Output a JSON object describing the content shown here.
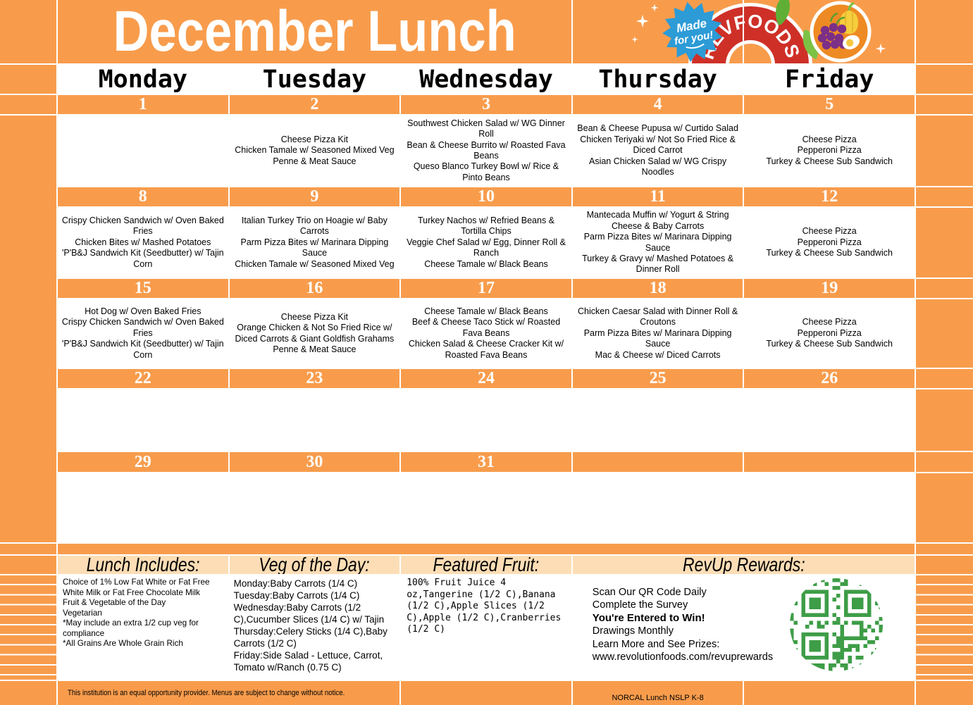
{
  "title": "December Lunch",
  "logo": {
    "badge_line1": "Made",
    "badge_line2": "for you!",
    "brand": "REVFOODS",
    "registered": "®"
  },
  "days": [
    "Monday",
    "Tuesday",
    "Wednesday",
    "Thursday",
    "Friday"
  ],
  "weeks": [
    {
      "dates": [
        "1",
        "2",
        "3",
        "4",
        "5"
      ],
      "menus": [
        "",
        "Cheese Pizza Kit\nChicken Tamale w/ Seasoned Mixed Veg\nPenne & Meat Sauce",
        "Southwest Chicken Salad w/ WG Dinner Roll\nBean & Cheese Burrito w/ Roasted Fava Beans\nQueso Blanco Turkey Bowl w/ Rice & Pinto Beans",
        "Bean & Cheese Pupusa w/ Curtido Salad\nChicken Teriyaki w/ Not So Fried Rice & Diced Carrot\nAsian Chicken Salad w/ WG Crispy Noodles",
        "Cheese Pizza\nPepperoni Pizza\nTurkey & Cheese Sub Sandwich"
      ]
    },
    {
      "dates": [
        "8",
        "9",
        "10",
        "11",
        "12"
      ],
      "menus": [
        "Crispy Chicken Sandwich w/ Oven Baked Fries\nChicken Bites w/ Mashed Potatoes\n'P'B&J Sandwich Kit (Seedbutter) w/ Tajin Corn",
        "Italian Turkey Trio on Hoagie w/ Baby Carrots\nParm Pizza Bites w/ Marinara Dipping Sauce\nChicken Tamale w/ Seasoned Mixed Veg",
        "Turkey Nachos w/ Refried Beans & Tortilla Chips\nVeggie Chef Salad w/ Egg, Dinner Roll & Ranch\nCheese Tamale w/ Black Beans",
        "Mantecada Muffin w/ Yogurt & String Cheese & Baby Carrots\nParm Pizza Bites w/ Marinara Dipping Sauce\nTurkey & Gravy w/ Mashed Potatoes & Dinner Roll",
        "Cheese Pizza\nPepperoni Pizza\nTurkey & Cheese Sub Sandwich"
      ]
    },
    {
      "dates": [
        "15",
        "16",
        "17",
        "18",
        "19"
      ],
      "menus": [
        "Hot Dog w/ Oven Baked Fries\nCrispy Chicken Sandwich w/ Oven Baked Fries\n'P'B&J Sandwich Kit (Seedbutter) w/ Tajin Corn",
        "Cheese Pizza Kit\nOrange Chicken & Not So Fried Rice w/ Diced Carrots & Giant Goldfish Grahams\nPenne & Meat Sauce",
        "Cheese Tamale w/ Black Beans\nBeef & Cheese Taco Stick w/ Roasted Fava Beans\nChicken Salad & Cheese Cracker Kit w/ Roasted Fava Beans",
        "Chicken Caesar Salad with Dinner Roll & Croutons\nParm Pizza Bites w/ Marinara Dipping Sauce\nMac & Cheese w/ Diced Carrots",
        "Cheese Pizza\nPepperoni Pizza\nTurkey & Cheese Sub Sandwich"
      ]
    },
    {
      "dates": [
        "22",
        "23",
        "24",
        "25",
        "26"
      ],
      "menus": [
        "",
        "",
        "",
        "",
        ""
      ]
    },
    {
      "dates": [
        "29",
        "30",
        "31",
        "",
        ""
      ],
      "menus": [
        "",
        "",
        "",
        "",
        ""
      ]
    }
  ],
  "sections": {
    "lunch_includes": {
      "header": "Lunch Includes:",
      "body": "Choice of 1% Low Fat White or Fat Free White Milk or Fat Free Chocolate Milk\nFruit & Vegetable of the Day\nVegetarian\n*May include an extra 1/2 cup veg for compliance\n*All Grains Are Whole Grain Rich"
    },
    "veg_of_day": {
      "header": "Veg of the Day:",
      "body": "Monday:Baby Carrots (1/4 C)\nTuesday:Baby Carrots (1/4 C)\nWednesday:Baby Carrots (1/2 C),Cucumber Slices (1/4 C) w/ Tajin\nThursday:Celery Sticks (1/4 C),Baby Carrots (1/2 C)\nFriday:Side Salad - Lettuce, Carrot, Tomato w/Ranch (0.75 C)"
    },
    "featured_fruit": {
      "header": "Featured Fruit:",
      "body": "100% Fruit Juice 4 oz,Tangerine (1/2 C),Banana (1/2 C),Apple Slices (1/2 C),Apple (1/2 C),Cranberries (1/2 C)"
    },
    "revup": {
      "header": "RevUp Rewards:",
      "lines": [
        "Scan Our QR Code Daily",
        "Complete the Survey",
        "You're Entered to Win!",
        "Drawings Monthly",
        "Learn More and See Prizes:",
        "www.revolutionfoods.com/revuprewards"
      ]
    }
  },
  "footer": {
    "left": "This institution is an equal opportunity provider. Menus are subject to change without notice.",
    "right": "NORCAL Lunch NSLP K-8"
  },
  "colors": {
    "orange": "#F89C4C",
    "peach": "#FCDDB5",
    "qr_green": "#3E9D47",
    "badge_blue": "#2C9BD6",
    "logo_red": "#CE3027",
    "leaf_green": "#68B93F",
    "fruit_circle_orange": "#EE8A23",
    "grape_purple": "#7B2F87",
    "pepper_yellow": "#F6CE3C"
  }
}
